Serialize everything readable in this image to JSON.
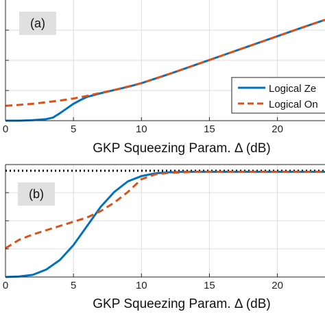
{
  "chart_data": [
    {
      "type": "line",
      "panel_label": "(a)",
      "xlabel": "GKP Squeezing Param. Δ (dB)",
      "xlim": [
        0,
        23.5
      ],
      "ylim": [
        0,
        1
      ],
      "x_ticks": [
        0,
        5,
        10,
        15,
        20
      ],
      "grid": true,
      "legend_position": "right",
      "colors": {
        "series_0": "#0072BD",
        "series_1": "#D95319"
      },
      "series": [
        {
          "name": "Logical Ze",
          "style": "solid",
          "x": [
            0,
            1,
            2,
            3,
            3.5,
            4,
            4.5,
            5,
            5.5,
            6,
            7,
            8,
            9,
            10,
            12,
            14,
            16,
            18,
            20,
            22,
            23.5
          ],
          "y": [
            0.0,
            0.0,
            0.005,
            0.015,
            0.03,
            0.07,
            0.115,
            0.16,
            0.195,
            0.225,
            0.26,
            0.29,
            0.32,
            0.355,
            0.44,
            0.53,
            0.62,
            0.71,
            0.8,
            0.89,
            0.955
          ]
        },
        {
          "name": "Logical On",
          "style": "dashed",
          "x": [
            0,
            2,
            4,
            5,
            6,
            8,
            10,
            12,
            14,
            16,
            18,
            20,
            22,
            23.5
          ],
          "y": [
            0.14,
            0.16,
            0.19,
            0.21,
            0.235,
            0.29,
            0.355,
            0.44,
            0.53,
            0.62,
            0.71,
            0.8,
            0.89,
            0.955
          ]
        }
      ]
    },
    {
      "type": "line",
      "panel_label": "(b)",
      "xlabel": "GKP Squeezing Param. Δ (dB)",
      "xlim": [
        0,
        23.5
      ],
      "ylim": [
        0,
        1
      ],
      "x_ticks": [
        0,
        5,
        10,
        15,
        20
      ],
      "grid": true,
      "reference_line": {
        "y": 1.0,
        "style": "dotted"
      },
      "colors": {
        "series_0": "#0072BD",
        "series_1": "#D95319"
      },
      "series": [
        {
          "name": "Logical Ze",
          "style": "solid",
          "x": [
            0,
            1,
            2,
            3,
            4,
            5,
            6,
            7,
            8,
            9,
            10,
            11,
            12,
            13,
            14,
            16,
            18,
            20,
            23.5
          ],
          "y": [
            0.0,
            0.005,
            0.02,
            0.07,
            0.16,
            0.3,
            0.48,
            0.66,
            0.8,
            0.9,
            0.95,
            0.975,
            0.985,
            0.99,
            0.99,
            0.99,
            0.99,
            0.99,
            0.99
          ]
        },
        {
          "name": "Logical On",
          "style": "dashed",
          "x": [
            0,
            1,
            2,
            3,
            4,
            5,
            6,
            7,
            8,
            9,
            10,
            11,
            12,
            13,
            14,
            16,
            18,
            20,
            23.5
          ],
          "y": [
            0.27,
            0.35,
            0.4,
            0.44,
            0.48,
            0.52,
            0.56,
            0.62,
            0.7,
            0.8,
            0.92,
            0.965,
            0.98,
            0.985,
            0.99,
            0.99,
            0.99,
            0.99,
            0.99
          ]
        }
      ]
    }
  ]
}
